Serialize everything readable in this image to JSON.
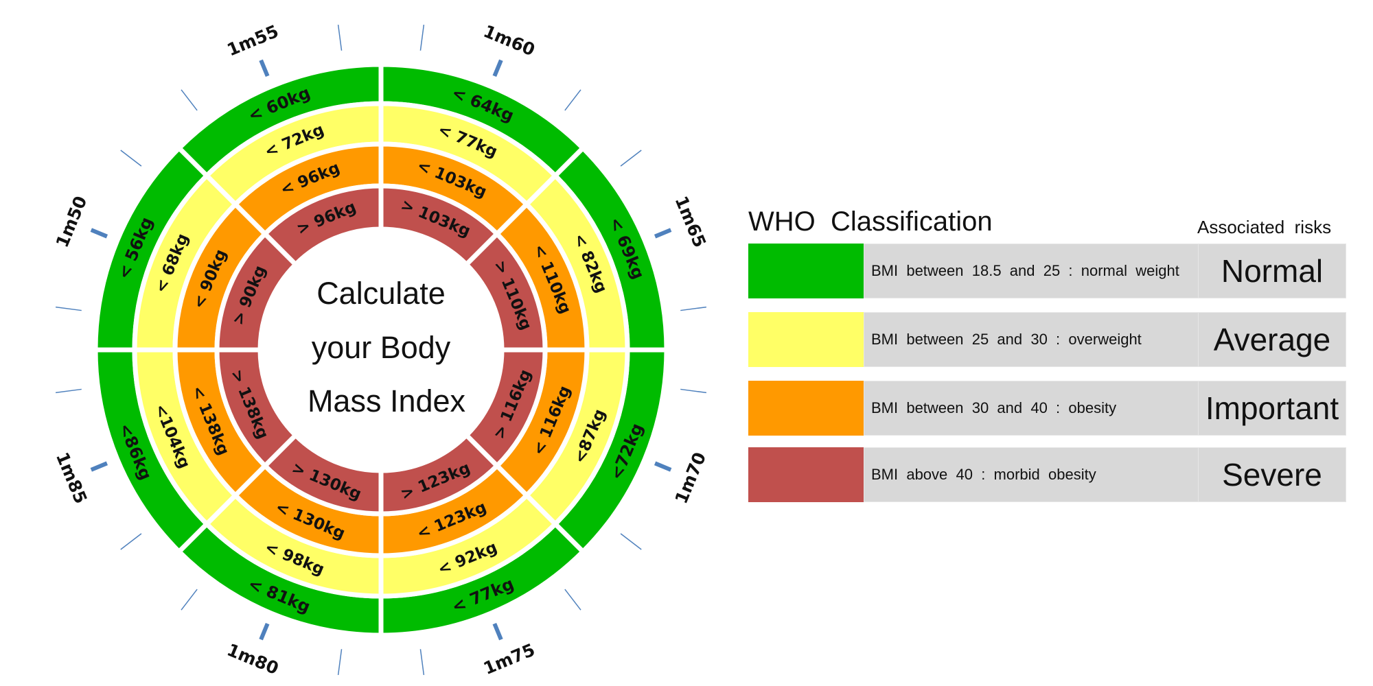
{
  "center_text": [
    "Calculate",
    "your  Body",
    "Mass  Index"
  ],
  "heights": [
    "1m55",
    "1m60",
    "1m65",
    "1m70",
    "1m75",
    "1m80",
    "1m85",
    "1m50"
  ],
  "colors": {
    "normal": "#00bb00",
    "overweight": "#ffff66",
    "obesity": "#ff9900",
    "morbid": "#c0504d",
    "tick": "#4f81bd"
  },
  "wheel": {
    "sectors": [
      {
        "height": "1m55",
        "labels": [
          "< 60kg",
          "< 72kg",
          "< 96kg",
          "> 96kg"
        ]
      },
      {
        "height": "1m60",
        "labels": [
          "< 64kg",
          "< 77kg",
          "< 103kg",
          "> 103kg"
        ]
      },
      {
        "height": "1m65",
        "labels": [
          "< 69kg",
          "< 82kg",
          "< 110kg",
          "> 110kg"
        ]
      },
      {
        "height": "1m70",
        "labels": [
          "<72kg",
          "<87kg",
          "< 116kg",
          "> 116kg"
        ]
      },
      {
        "height": "1m75",
        "labels": [
          "< 77kg",
          "< 92kg",
          "< 123kg",
          "> 123kg"
        ]
      },
      {
        "height": "1m80",
        "labels": [
          "< 81kg",
          "< 98kg",
          "< 130kg",
          "> 130kg"
        ]
      },
      {
        "height": "1m85",
        "labels": [
          "<86kg",
          "<104kg",
          "< 138kg",
          "> 138kg"
        ]
      },
      {
        "height": "1m50",
        "labels": [
          "< 56kg",
          "< 68kg",
          "< 90kg",
          "> 90kg"
        ]
      }
    ]
  },
  "legend": {
    "title": "WHO  Classification",
    "risk_header": "Associated  risks",
    "rows": [
      {
        "color": "#00bb00",
        "text": "BMI  between  18.5  and  25  :  normal  weight",
        "risk": "Normal"
      },
      {
        "color": "#ffff66",
        "text": "BMI  between  25  and  30  :  overweight",
        "risk": "Average"
      },
      {
        "color": "#ff9900",
        "text": "BMI  between  30  and  40  :  obesity",
        "risk": "Important"
      },
      {
        "color": "#c0504d",
        "text": "BMI  above  40  :  morbid  obesity",
        "risk": "Severe"
      }
    ]
  }
}
